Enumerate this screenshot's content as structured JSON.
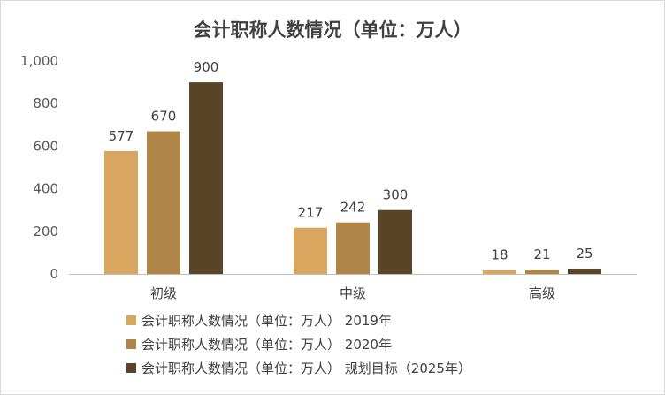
{
  "chart_data": {
    "type": "bar",
    "title": "会计职称人数情况（单位：万人）",
    "categories": [
      "初级",
      "中级",
      "高级"
    ],
    "series": [
      {
        "name": "会计职称人数情况（单位：万人） 2019年",
        "values": [
          577,
          217,
          18
        ],
        "color": "#d8a65f"
      },
      {
        "name": "会计职称人数情况（单位：万人） 2020年",
        "values": [
          670,
          242,
          21
        ],
        "color": "#b08548"
      },
      {
        "name": "会计职称人数情况（单位：万人） 规划目标（2025年）",
        "values": [
          900,
          300,
          25
        ],
        "color": "#5a4426"
      }
    ],
    "ylim": [
      0,
      1000
    ],
    "yticks": [
      0,
      200,
      400,
      600,
      800,
      1000
    ],
    "ytick_labels": [
      "0",
      "200",
      "400",
      "600",
      "800",
      "1,000"
    ],
    "grid": false,
    "legend_position": "bottom",
    "data_labels": true
  }
}
